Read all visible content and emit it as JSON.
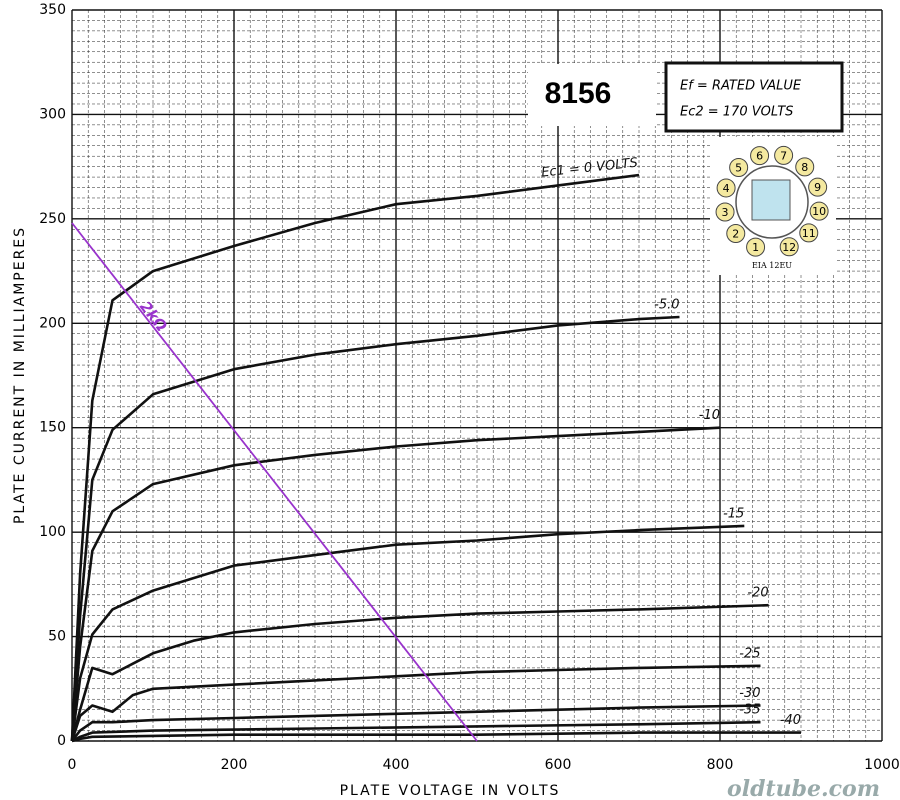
{
  "chart_data": {
    "type": "line",
    "title": "8156",
    "conditions": [
      "Ef = RATED VALUE",
      "Ec2 = 170 VOLTS"
    ],
    "xlabel": "PLATE VOLTAGE IN VOLTS",
    "ylabel": "PLATE CURRENT IN MILLIAMPERES",
    "watermark": "oldtube.com",
    "base_diagram": {
      "pins": [
        "1",
        "2",
        "3",
        "4",
        "5",
        "6",
        "7",
        "8",
        "9",
        "10",
        "11",
        "12"
      ],
      "label": "EIA 12EU"
    },
    "xlim": [
      0,
      1000
    ],
    "xticks": [
      0,
      200,
      400,
      600,
      800,
      1000
    ],
    "ylim": [
      0,
      350
    ],
    "yticks": [
      0,
      50,
      100,
      150,
      200,
      250,
      300,
      350
    ],
    "grid": true,
    "series": [
      {
        "name": "Ec1 = 0 VOLTS",
        "color": "#111111",
        "x": [
          0,
          10,
          25,
          50,
          100,
          200,
          300,
          400,
          500,
          600,
          700
        ],
        "values": [
          0,
          80,
          163,
          211,
          225,
          237,
          248,
          257,
          261,
          266,
          271
        ]
      },
      {
        "name": "-5.0",
        "color": "#111111",
        "x": [
          0,
          10,
          25,
          50,
          100,
          200,
          300,
          400,
          500,
          600,
          700,
          750
        ],
        "values": [
          0,
          60,
          125,
          149,
          166,
          178,
          185,
          190,
          194,
          199,
          202,
          203
        ]
      },
      {
        "name": "-10",
        "color": "#111111",
        "x": [
          0,
          10,
          25,
          50,
          100,
          200,
          300,
          400,
          500,
          600,
          700,
          800
        ],
        "values": [
          0,
          45,
          91,
          110,
          123,
          132,
          137,
          141,
          144,
          146,
          148,
          150
        ]
      },
      {
        "name": "-15",
        "color": "#111111",
        "x": [
          0,
          10,
          25,
          50,
          100,
          200,
          300,
          400,
          500,
          600,
          700,
          830
        ],
        "values": [
          0,
          30,
          51,
          63,
          72,
          84,
          89,
          94,
          96,
          99,
          101,
          103
        ]
      },
      {
        "name": "-20",
        "color": "#111111",
        "x": [
          0,
          10,
          25,
          50,
          75,
          100,
          150,
          200,
          300,
          400,
          500,
          600,
          700,
          860
        ],
        "values": [
          0,
          15,
          35,
          32,
          37,
          42,
          48,
          52,
          56,
          59,
          61,
          62,
          63,
          65
        ]
      },
      {
        "name": "-25",
        "color": "#111111",
        "x": [
          0,
          10,
          25,
          50,
          75,
          100,
          200,
          300,
          400,
          500,
          600,
          700,
          850
        ],
        "values": [
          0,
          12,
          17,
          14,
          22,
          25,
          27,
          29,
          31,
          33,
          34,
          35,
          36
        ]
      },
      {
        "name": "-30",
        "color": "#111111",
        "x": [
          0,
          10,
          25,
          50,
          100,
          200,
          400,
          600,
          700,
          850
        ],
        "values": [
          0,
          5,
          9,
          9,
          10,
          11,
          13,
          15,
          16,
          17
        ]
      },
      {
        "name": "-35",
        "color": "#111111",
        "x": [
          0,
          10,
          25,
          100,
          300,
          500,
          700,
          850
        ],
        "values": [
          0,
          2,
          4,
          5,
          6,
          7,
          8,
          9
        ]
      },
      {
        "name": "-40",
        "color": "#111111",
        "x": [
          0,
          10,
          25,
          200,
          500,
          700,
          900
        ],
        "values": [
          0,
          1,
          2,
          3,
          3,
          4,
          4
        ]
      },
      {
        "name": "2kΩ",
        "color": "#9933cc",
        "x": [
          0,
          500
        ],
        "values": [
          248,
          0
        ]
      }
    ]
  }
}
